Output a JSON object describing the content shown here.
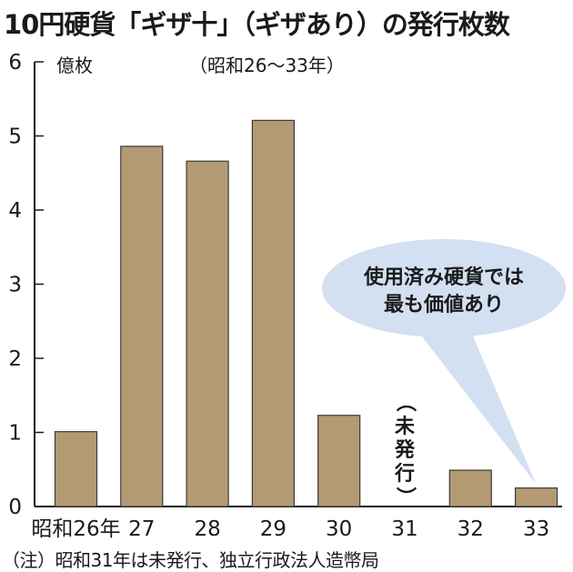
{
  "title": "10円硬貨「ギザ十」（ギザあり）の発行枚数",
  "colors": {
    "bar": "#b39a73",
    "bar_stroke": "#3a3a3a",
    "callout_fill": "#d3e0f1",
    "axis": "#1a1a1a"
  },
  "chart_data": {
    "type": "bar",
    "title": "10円硬貨「ギザ十」（ギザあり）の発行枚数",
    "subtitle": "（昭和26～33年）",
    "ylabel": "億枚",
    "xlabel": "",
    "ylim": [
      0,
      6
    ],
    "yticks": [
      0,
      1,
      2,
      3,
      4,
      5,
      6
    ],
    "grid": false,
    "categories": [
      "昭和26年",
      "27",
      "28",
      "29",
      "30",
      "31",
      "32",
      "33"
    ],
    "values": [
      1.01,
      4.86,
      4.66,
      5.21,
      1.23,
      null,
      0.49,
      0.25
    ],
    "annotations": {
      "unissued": {
        "category": "31",
        "text": "（未発行）"
      },
      "callout": {
        "category": "33",
        "lines": [
          "使用済み硬貨では",
          "最も価値あり"
        ]
      }
    }
  },
  "note": "（注）昭和31年は未発行、独立行政法人造幣局"
}
